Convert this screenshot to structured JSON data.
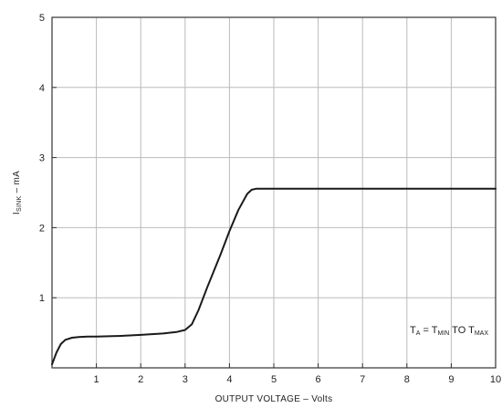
{
  "chart_data": {
    "type": "line",
    "x_ticks": [
      "1",
      "2",
      "3",
      "4",
      "5",
      "6",
      "7",
      "8",
      "9",
      "10"
    ],
    "y_ticks": [
      "1",
      "2",
      "3",
      "4",
      "5"
    ],
    "xlim": [
      0,
      10
    ],
    "ylim": [
      0,
      5
    ],
    "xlabel": "OUTPUT VOLTAGE – Volts",
    "ylabel": {
      "main": "I",
      "sub": "SINK",
      "unit": " – mA"
    },
    "annotation": {
      "t": "T",
      "t_sub": "A",
      "eq": " = T",
      "min_sub": "MIN",
      "to": " TO T",
      "max_sub": "MAX"
    },
    "grid": true,
    "series": [
      {
        "x": [
          0,
          0.1,
          0.2,
          0.3,
          0.45,
          0.6,
          0.8,
          1.0,
          1.5,
          2.0,
          2.5,
          2.8,
          3.0,
          3.15,
          3.3,
          3.5,
          3.8,
          4.0,
          4.2,
          4.4,
          4.5,
          4.6,
          4.75,
          5.0,
          6.0,
          7.0,
          8.0,
          9.0,
          10.0
        ],
        "y": [
          0.05,
          0.22,
          0.34,
          0.4,
          0.43,
          0.44,
          0.445,
          0.445,
          0.455,
          0.47,
          0.49,
          0.51,
          0.54,
          0.62,
          0.82,
          1.15,
          1.62,
          1.95,
          2.25,
          2.48,
          2.54,
          2.555,
          2.555,
          2.555,
          2.555,
          2.555,
          2.555,
          2.555,
          2.555
        ]
      }
    ],
    "colors": {
      "line": "#1a1a1a",
      "grid": "#bbbbbb",
      "frame": "#333333"
    }
  }
}
